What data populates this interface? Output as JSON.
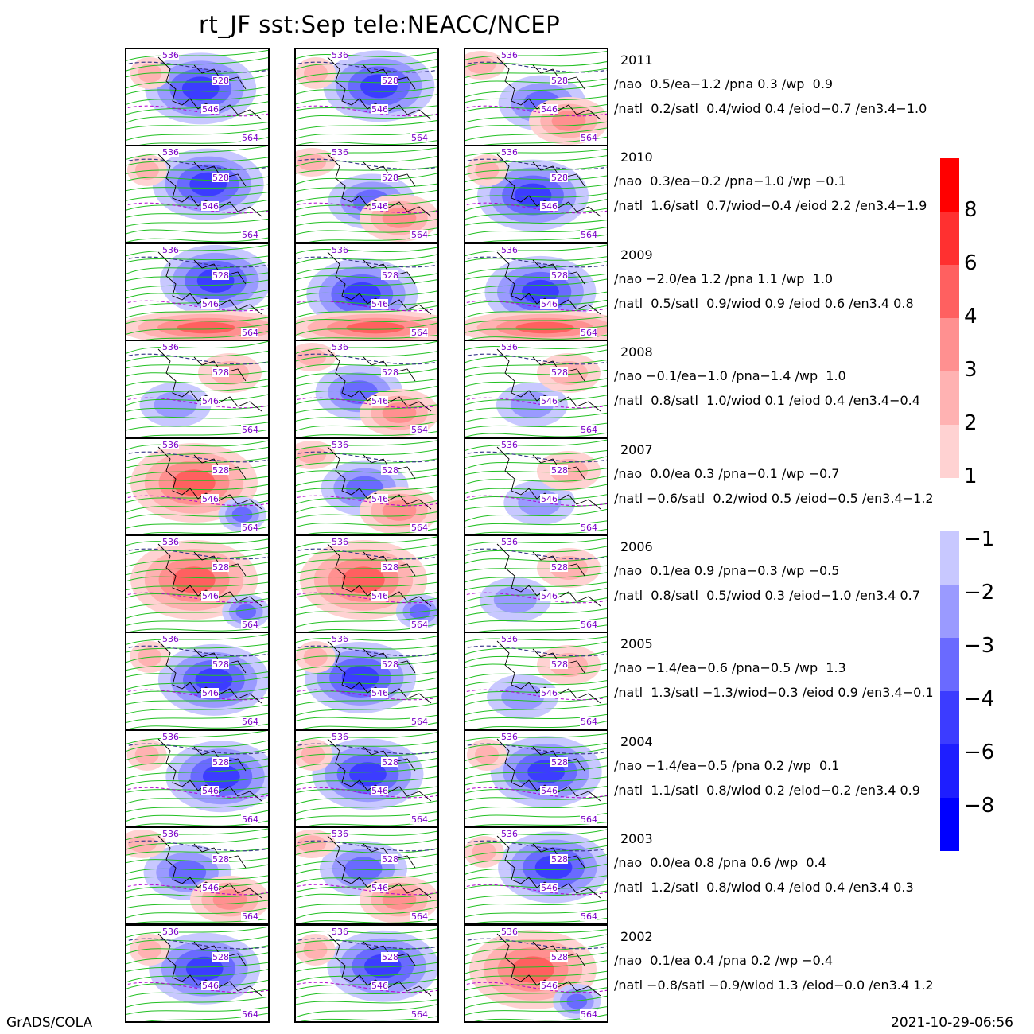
{
  "title": "rt_JF  sst:Sep  tele:NEACC/NCEP",
  "footer_left": "GrADS/COLA",
  "footer_right": "2021-10-29-06:56",
  "contour_labels": [
    "536",
    "528",
    "546",
    "564"
  ],
  "years": [
    {
      "year": "2011",
      "line1": "/nao  0.5/ea−1.2 /pna 0.3 /wp  0.9",
      "line2": "/natl  0.2/satl  0.4/wiod 0.4 /eiod−0.7 /en3.4−1.0"
    },
    {
      "year": "2010",
      "line1": "/nao  0.3/ea−0.2 /pna−1.0 /wp −0.1",
      "line2": "/natl  1.6/satl  0.7/wiod−0.4 /eiod 2.2 /en3.4−1.9"
    },
    {
      "year": "2009",
      "line1": "/nao −2.0/ea 1.2 /pna 1.1 /wp  1.0",
      "line2": "/natl  0.5/satl  0.9/wiod 0.9 /eiod 0.6 /en3.4 0.8"
    },
    {
      "year": "2008",
      "line1": "/nao −0.1/ea−1.0 /pna−1.4 /wp  1.0",
      "line2": "/natl  0.8/satl  1.0/wiod 0.1 /eiod 0.4 /en3.4−0.4"
    },
    {
      "year": "2007",
      "line1": "/nao  0.0/ea 0.3 /pna−0.1 /wp −0.7",
      "line2": "/natl −0.6/satl  0.2/wiod 0.5 /eiod−0.5 /en3.4−1.2"
    },
    {
      "year": "2006",
      "line1": "/nao  0.1/ea 0.9 /pna−0.3 /wp −0.5",
      "line2": "/natl  0.8/satl  0.5/wiod 0.3 /eiod−1.0 /en3.4 0.7"
    },
    {
      "year": "2005",
      "line1": "/nao −1.4/ea−0.6 /pna−0.5 /wp  1.3",
      "line2": "/natl  1.3/satl −1.3/wiod−0.3 /eiod 0.9 /en3.4−0.1"
    },
    {
      "year": "2004",
      "line1": "/nao −1.4/ea−0.5 /pna 0.2 /wp  0.1",
      "line2": "/natl  1.1/satl  0.8/wiod 0.2 /eiod−0.2 /en3.4 0.9"
    },
    {
      "year": "2003",
      "line1": "/nao  0.0/ea 0.8 /pna 0.6 /wp  0.4",
      "line2": "/natl  1.2/satl  0.8/wiod 0.4 /eiod 0.4 /en3.4 0.3"
    },
    {
      "year": "2002",
      "line1": "/nao  0.1/ea 0.4 /pna 0.2 /wp −0.4",
      "line2": "/natl −0.8/satl −0.9/wiod 1.3 /eiod−0.0 /en3.4 1.2"
    }
  ],
  "colorbar_positive": {
    "colors": [
      "#ff0000",
      "#ff3030",
      "#ff6060",
      "#ff9090",
      "#ffb2b2",
      "#ffd2d2"
    ],
    "labels": [
      "8",
      "6",
      "4",
      "3",
      "2",
      "1"
    ]
  },
  "colorbar_negative": {
    "colors": [
      "#c8c8ff",
      "#9a9aff",
      "#6a6aff",
      "#3c3cff",
      "#1e1eff",
      "#0000ff"
    ],
    "labels": [
      "−1",
      "−2",
      "−3",
      "−4",
      "−6",
      "−8"
    ]
  },
  "panel_patterns": [
    [
      "blue",
      "blue",
      "mixed"
    ],
    [
      "blue",
      "mixed",
      "blue"
    ],
    [
      "blue-red",
      "blue-red",
      "blue-red"
    ],
    [
      "light",
      "mixed",
      "light"
    ],
    [
      "red",
      "mixed",
      "light"
    ],
    [
      "red",
      "red",
      "light"
    ],
    [
      "blue",
      "blue",
      "light"
    ],
    [
      "blue",
      "blue",
      "blue"
    ],
    [
      "mixed",
      "mixed",
      "blue"
    ],
    [
      "blue",
      "blue",
      "red"
    ]
  ]
}
